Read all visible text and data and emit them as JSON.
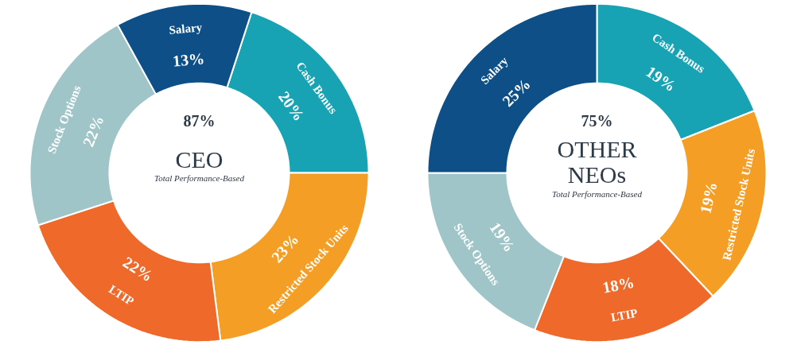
{
  "chart_data": [
    {
      "type": "donut",
      "title": "CEO",
      "subtitle": "Total Performance-Based",
      "annotations": [
        "87%"
      ],
      "categories": [
        "Cash Bonus",
        "Restricted Stock Units",
        "LTIP",
        "Stock Options",
        "Salary"
      ],
      "values": [
        20,
        23,
        22,
        22,
        13
      ],
      "value_labels": [
        "20%",
        "23%",
        "22%",
        "22%",
        "13%"
      ],
      "colors": [
        "#17a3b3",
        "#f59e25",
        "#ef6a2a",
        "#9fc5c8",
        "#0d4f86"
      ]
    },
    {
      "type": "donut",
      "title": "OTHER NEOs",
      "subtitle": "Total Performance-Based",
      "annotations": [
        "75%"
      ],
      "categories": [
        "Cash Bonus",
        "Restricted Stock Units",
        "LTIP",
        "Stock Options",
        "Salary"
      ],
      "values": [
        19,
        19,
        18,
        19,
        25
      ],
      "value_labels": [
        "19%",
        "19%",
        "18%",
        "19%",
        "25%"
      ],
      "colors": [
        "#17a3b3",
        "#f59e25",
        "#ef6a2a",
        "#9fc5c8",
        "#0d4f86"
      ]
    }
  ]
}
